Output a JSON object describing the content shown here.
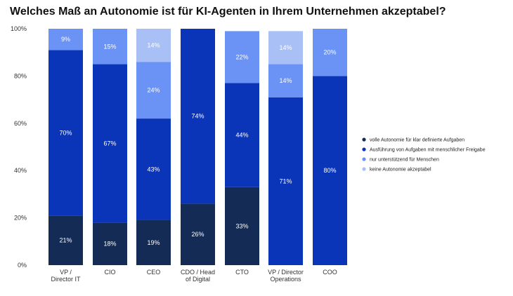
{
  "title": "Welches Maß an Autonomie ist für KI-Agenten in Ihrem Unternehmen akzeptabel?",
  "chart_data": {
    "type": "bar",
    "stacked": true,
    "percent_stacked": true,
    "title": "Welches Maß an Autonomie ist für KI-Agenten in Ihrem Unternehmen akzeptabel?",
    "categories": [
      [
        "VP /",
        "Director IT"
      ],
      [
        "CIO"
      ],
      [
        "CEO"
      ],
      [
        "CDO / Head",
        "of Digital"
      ],
      [
        "CTO"
      ],
      [
        "VP / Director",
        "Operations"
      ],
      [
        "COO"
      ]
    ],
    "series": [
      {
        "name": "volle Autonomie für klar definierte Aufgaben",
        "color": "#132b55",
        "values": [
          21,
          18,
          19,
          26,
          33,
          0,
          0
        ],
        "labels": [
          "21%",
          "18%",
          "19%",
          "26%",
          "33%",
          "",
          ""
        ]
      },
      {
        "name": "Ausführung von Aufgaben mit menschlicher Freigabe",
        "color": "#0b35b8",
        "values": [
          70,
          67,
          43,
          74,
          44,
          71,
          80
        ],
        "labels": [
          "70%",
          "67%",
          "43%",
          "74%",
          "44%",
          "71%",
          "80%"
        ]
      },
      {
        "name": "nur unterstützend für Menschen",
        "color": "#6b93f5",
        "values": [
          9,
          15,
          24,
          0,
          22,
          14,
          20
        ],
        "labels": [
          "9%",
          "15%",
          "24%",
          "",
          "22%",
          "14%",
          "20%"
        ]
      },
      {
        "name": "keine Autonomie akzeptabel",
        "color": "#a9c0f7",
        "values": [
          0,
          0,
          14,
          0,
          0,
          14,
          0
        ],
        "labels": [
          "",
          "",
          "14%",
          "",
          "",
          "14%",
          ""
        ]
      }
    ],
    "yticks": [
      "0%",
      "20%",
      "40%",
      "60%",
      "80%",
      "100%"
    ],
    "ylim": [
      0,
      100
    ],
    "legend_position": "right",
    "grid": false
  }
}
